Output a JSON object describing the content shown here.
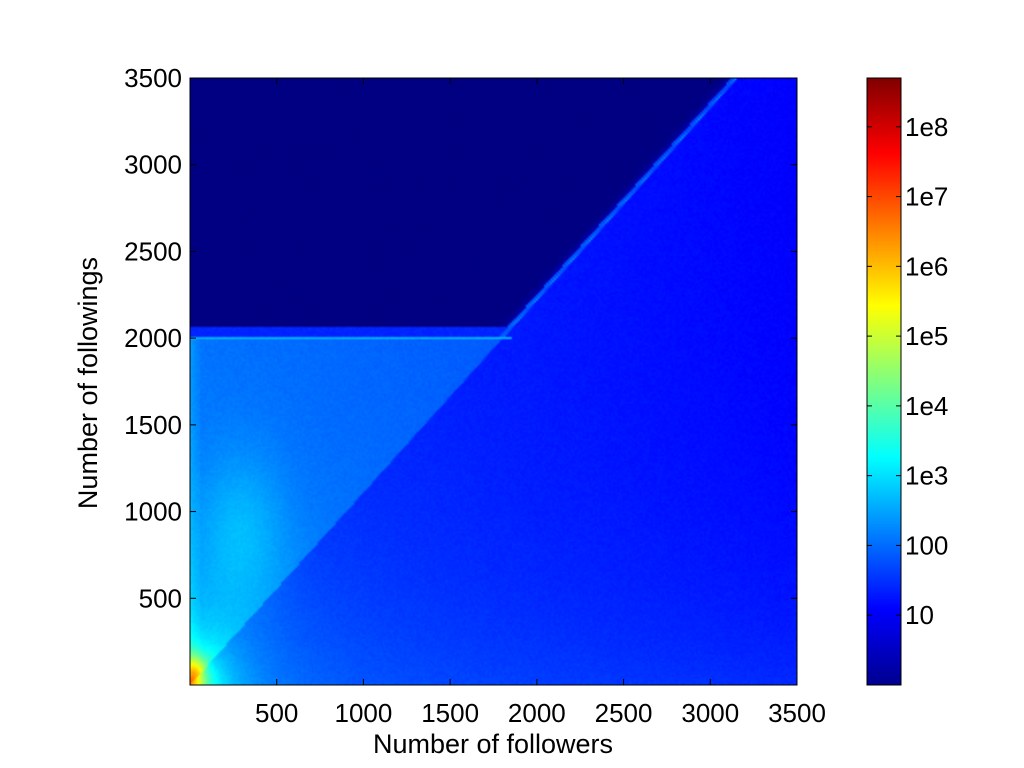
{
  "chart_data": {
    "type": "heatmap",
    "title": "",
    "xlabel": "Number of followers",
    "ylabel": "Number of followings",
    "xlim": [
      0,
      3500
    ],
    "ylim": [
      0,
      3500
    ],
    "xticks": [
      500,
      1000,
      1500,
      2000,
      2500,
      3000,
      3500
    ],
    "yticks": [
      500,
      1000,
      1500,
      2000,
      2500,
      3000,
      3500
    ],
    "x_tick_labels": [
      "500",
      "1000",
      "1500",
      "2000",
      "2500",
      "3000",
      "3500"
    ],
    "y_tick_labels": [
      "500",
      "1000",
      "1500",
      "2000",
      "2500",
      "3000",
      "3500"
    ],
    "grid": false,
    "colormap": "jet",
    "colorbar": {
      "scale": "log",
      "range": [
        1,
        500000000
      ],
      "ticks": [
        10,
        100,
        1000,
        10000,
        100000,
        1000000,
        10000000,
        100000000
      ],
      "tick_labels": [
        "10",
        "100",
        "1e3",
        "1e4",
        "1e5",
        "1e6",
        "1e7",
        "1e8"
      ],
      "placement": "right"
    },
    "features": [
      {
        "name": "following limit plateau",
        "x_range": [
          0,
          1850
        ],
        "y": 2000,
        "count": 800
      },
      {
        "name": "diagonal ridge",
        "from": [
          0,
          0
        ],
        "to": [
          3150,
          3500
        ],
        "count": 250
      },
      {
        "name": "peak density",
        "x": 30,
        "y": 80,
        "count": 5000000
      }
    ]
  }
}
